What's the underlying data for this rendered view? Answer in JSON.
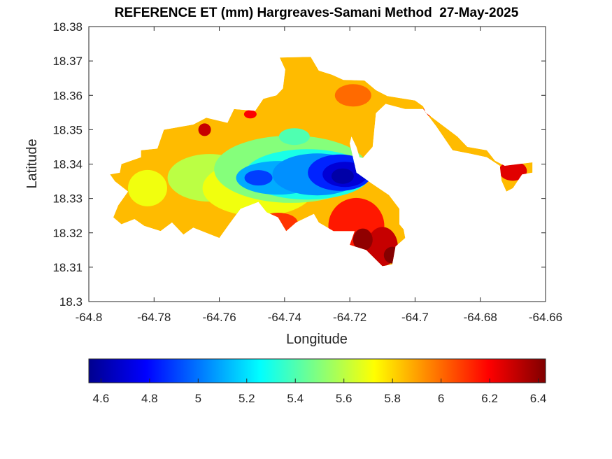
{
  "chart_data": {
    "type": "heatmap",
    "title": "REFERENCE ET (mm) Hargreaves-Samani Method  27-May-2025",
    "xlabel": "Longitude",
    "ylabel": "Latitude",
    "xlim": [
      -64.8,
      -64.66
    ],
    "ylim": [
      18.3,
      18.38
    ],
    "xticks": [
      "-64.8",
      "-64.78",
      "-64.76",
      "-64.74",
      "-64.72",
      "-64.7",
      "-64.68",
      "-64.66"
    ],
    "yticks": [
      "18.3",
      "18.31",
      "18.32",
      "18.33",
      "18.34",
      "18.35",
      "18.36",
      "18.37",
      "18.38"
    ],
    "colorbar": {
      "range": [
        4.55,
        6.43
      ],
      "ticks": [
        "4.6",
        "4.8",
        "5",
        "5.2",
        "5.4",
        "5.6",
        "5.8",
        "6",
        "6.2",
        "6.4"
      ],
      "colormap": "jet"
    },
    "value_range": [
      4.6,
      6.4
    ],
    "min_location": {
      "lon": -64.722,
      "lat": 18.3365,
      "value": 4.6
    },
    "max_location": {
      "lon": -64.707,
      "lat": 18.311,
      "value": 6.4
    }
  }
}
